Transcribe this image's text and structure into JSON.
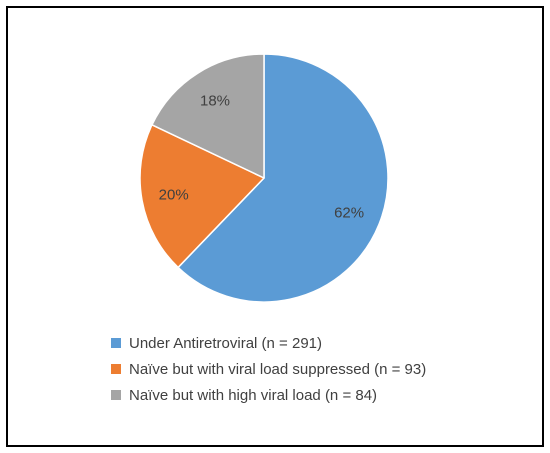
{
  "chart_data": {
    "type": "pie",
    "title": "",
    "slices": [
      {
        "name": "Under Antiretroviral  (n = 291)",
        "value": 291,
        "label": "62%",
        "color": "#5b9bd5"
      },
      {
        "name": "Naïve but with viral load suppressed (n = 93)",
        "value": 93,
        "label": "20%",
        "color": "#ed7d31"
      },
      {
        "name": "Naïve but with high viral load (n = 84)",
        "value": 84,
        "label": "18%",
        "color": "#a5a5a5"
      }
    ],
    "legend_position": "bottom"
  }
}
